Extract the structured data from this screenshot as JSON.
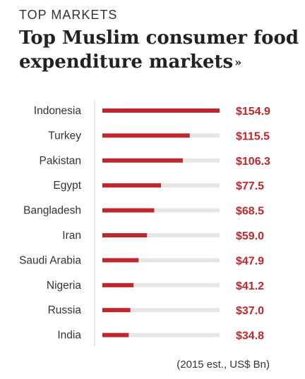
{
  "header": {
    "kicker": "TOP MARKETS",
    "title": "Top Muslim consumer food expenditure markets",
    "title_icon": "double-chevron-down-icon"
  },
  "note": "(2015 est., US$ Bn)",
  "colors": {
    "bar": "#c0272d",
    "track": "#e6e6e6",
    "value_text": "#c0272d",
    "axis": "#d0d0d0"
  },
  "chart_data": {
    "type": "bar",
    "orientation": "horizontal",
    "title": "Top Muslim consumer food expenditure markets",
    "xlabel": "",
    "ylabel": "",
    "xlim": [
      0,
      154.9
    ],
    "grid": false,
    "categories": [
      "Indonesia",
      "Turkey",
      "Pakistan",
      "Egypt",
      "Bangladesh",
      "Iran",
      "Saudi Arabia",
      "Nigeria",
      "Russia",
      "India"
    ],
    "values": [
      154.9,
      115.5,
      106.3,
      77.5,
      68.5,
      59.0,
      47.9,
      41.2,
      37.0,
      34.8
    ],
    "value_labels": [
      "$154.9",
      "$115.5",
      "$106.3",
      "$77.5",
      "$68.5",
      "$59.0",
      "$47.9",
      "$41.2",
      "$37.0",
      "$34.8"
    ],
    "note": "(2015 est., US$ Bn)"
  }
}
